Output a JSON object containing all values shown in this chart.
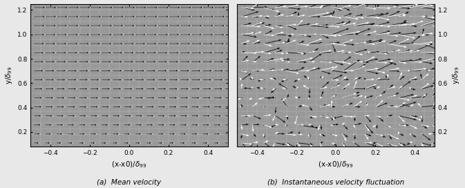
{
  "bg_color": "#999999",
  "fig_facecolor": "#e8e8e8",
  "xlim": [
    -0.5,
    0.5
  ],
  "ylim": [
    0.08,
    1.25
  ],
  "x_ticks": [
    -0.4,
    -0.2,
    0.0,
    0.2,
    0.4
  ],
  "y_ticks": [
    0.2,
    0.4,
    0.6,
    0.8,
    1.0,
    1.2
  ],
  "xlabel": "(x-x0)/$\\delta_{99}$",
  "ylabel_left": "y/$\\delta_{99}$",
  "ylabel_right": "y/$\\delta_{99}$",
  "caption_a": "(a)  Mean velocity",
  "caption_b": "(b)  Instantaneous velocity fluctuation",
  "nx": 18,
  "ny": 16,
  "grid_color": "#bbbbbb",
  "arrow_color_white": "#ffffff",
  "arrow_color_black": "#111111",
  "border_color": "#000000"
}
